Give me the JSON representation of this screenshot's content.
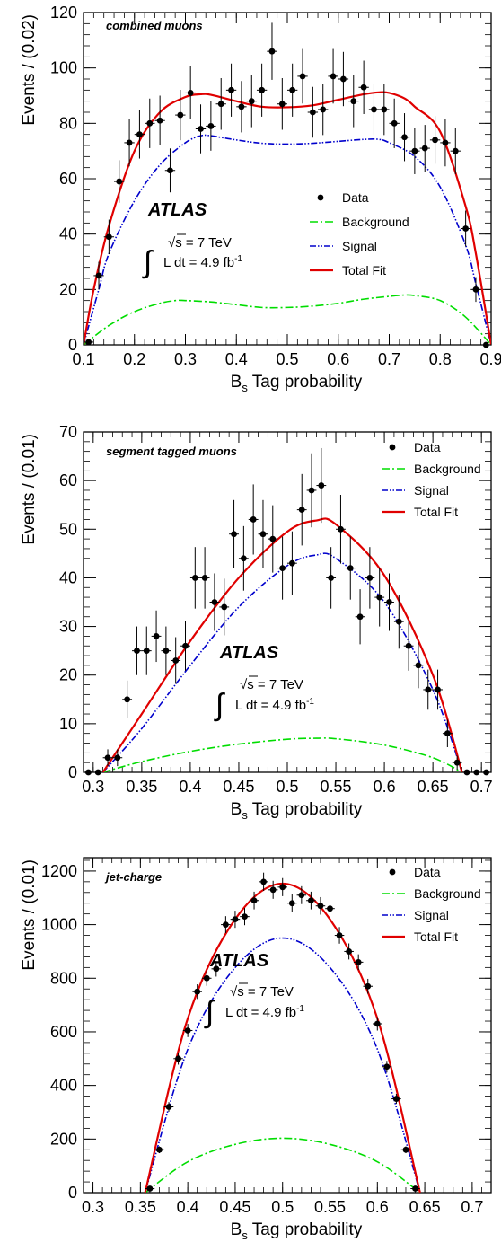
{
  "chart_data": [
    {
      "type": "scatter",
      "panel_label": "combined muons",
      "experiment": "ATLAS",
      "energy_label": "√s = 7 TeV",
      "lumi_label": "L dt = 4.9 fb",
      "lumi_exp": "-1",
      "xlabel": "B",
      "xlabel_sub": "s",
      "xlabel_rest": " Tag probability",
      "ylabel": "Events / (0.02)",
      "xlim": [
        0.1,
        0.9
      ],
      "ylim": [
        0,
        120
      ],
      "xticks": [
        "0.1",
        "0.2",
        "0.3",
        "0.4",
        "0.5",
        "0.6",
        "0.7",
        "0.8",
        "0.9"
      ],
      "yticks": [
        "0",
        "20",
        "40",
        "60",
        "80",
        "100",
        "120"
      ],
      "legend_position": "middle-right",
      "legend": [
        {
          "label": "Data",
          "kind": "marker",
          "color": "#000000"
        },
        {
          "label": "Background",
          "kind": "dashdot",
          "color": "#00dd00"
        },
        {
          "label": "Signal",
          "kind": "dashdotdot",
          "color": "#0000cc"
        },
        {
          "label": "Total Fit",
          "kind": "solid",
          "color": "#e00000"
        }
      ],
      "data": {
        "x": [
          0.11,
          0.13,
          0.15,
          0.17,
          0.19,
          0.21,
          0.23,
          0.25,
          0.27,
          0.29,
          0.31,
          0.33,
          0.35,
          0.37,
          0.39,
          0.41,
          0.43,
          0.45,
          0.47,
          0.49,
          0.51,
          0.53,
          0.55,
          0.57,
          0.59,
          0.61,
          0.63,
          0.65,
          0.67,
          0.69,
          0.71,
          0.73,
          0.75,
          0.77,
          0.79,
          0.81,
          0.83,
          0.85,
          0.87,
          0.89
        ],
        "y": [
          1,
          25,
          39,
          59,
          73,
          76,
          80,
          81,
          63,
          83,
          91,
          78,
          79,
          87,
          92,
          86,
          88,
          92,
          106,
          87,
          92,
          97,
          84,
          85,
          97,
          96,
          88,
          93,
          85,
          85,
          80,
          75,
          70,
          71,
          74,
          73,
          70,
          42,
          20,
          0
        ]
      },
      "series": [
        {
          "name": "Background",
          "x": [
            0.1,
            0.15,
            0.2,
            0.25,
            0.28,
            0.3,
            0.35,
            0.4,
            0.45,
            0.5,
            0.55,
            0.6,
            0.65,
            0.7,
            0.73,
            0.75,
            0.8,
            0.85,
            0.9
          ],
          "y": [
            0,
            7,
            12,
            15,
            16,
            16,
            15.5,
            14.5,
            13.5,
            13.5,
            14,
            15,
            16.5,
            17.5,
            18,
            17.8,
            16,
            10,
            0
          ]
        },
        {
          "name": "Signal",
          "x": [
            0.1,
            0.13,
            0.15,
            0.2,
            0.25,
            0.3,
            0.33,
            0.35,
            0.4,
            0.45,
            0.5,
            0.55,
            0.6,
            0.65,
            0.68,
            0.7,
            0.75,
            0.8,
            0.85,
            0.87,
            0.9
          ],
          "y": [
            0,
            20,
            33,
            52,
            65,
            73,
            75.5,
            75.5,
            74,
            72.8,
            72.5,
            72.8,
            73.5,
            74.2,
            74.2,
            73,
            68,
            57,
            36,
            22,
            0
          ]
        },
        {
          "name": "Total Fit",
          "x": [
            0.1,
            0.12,
            0.15,
            0.2,
            0.25,
            0.3,
            0.33,
            0.35,
            0.4,
            0.45,
            0.5,
            0.55,
            0.6,
            0.65,
            0.68,
            0.7,
            0.73,
            0.75,
            0.8,
            0.85,
            0.87,
            0.9
          ],
          "y": [
            0,
            20,
            43,
            70,
            84,
            89.5,
            90.5,
            90.3,
            88,
            86,
            85.8,
            86.5,
            88.5,
            90.5,
            91.2,
            91,
            89,
            86,
            77,
            50,
            33,
            0
          ]
        }
      ]
    },
    {
      "type": "scatter",
      "panel_label": "segment tagged muons",
      "experiment": "ATLAS",
      "energy_label": "√s = 7 TeV",
      "lumi_label": "L dt = 4.9 fb",
      "lumi_exp": "-1",
      "xlabel": "B",
      "xlabel_sub": "s",
      "xlabel_rest": " Tag probability",
      "ylabel": "Events / (0.01)",
      "xlim": [
        0.29,
        0.71
      ],
      "ylim": [
        0,
        70
      ],
      "xticks": [
        "0.3",
        "0.35",
        "0.4",
        "0.45",
        "0.5",
        "0.55",
        "0.6",
        "0.65",
        "0.7"
      ],
      "yticks": [
        "0",
        "10",
        "20",
        "30",
        "40",
        "50",
        "60",
        "70"
      ],
      "legend_position": "top-right",
      "legend": [
        {
          "label": "Data",
          "kind": "marker",
          "color": "#000000"
        },
        {
          "label": "Background",
          "kind": "dashdot",
          "color": "#00dd00"
        },
        {
          "label": "Signal",
          "kind": "dashdotdot",
          "color": "#0000cc"
        },
        {
          "label": "Total Fit",
          "kind": "solid",
          "color": "#e00000"
        }
      ],
      "data": {
        "x": [
          0.295,
          0.305,
          0.315,
          0.325,
          0.335,
          0.345,
          0.355,
          0.365,
          0.375,
          0.385,
          0.395,
          0.405,
          0.415,
          0.425,
          0.435,
          0.445,
          0.455,
          0.465,
          0.475,
          0.485,
          0.495,
          0.505,
          0.515,
          0.525,
          0.535,
          0.545,
          0.555,
          0.565,
          0.575,
          0.585,
          0.595,
          0.605,
          0.615,
          0.625,
          0.635,
          0.645,
          0.655,
          0.665,
          0.675,
          0.685,
          0.695,
          0.705
        ],
        "y": [
          0,
          0,
          3,
          3,
          15,
          25,
          25,
          28,
          25,
          23,
          26,
          40,
          40,
          35,
          34,
          49,
          44,
          52,
          49,
          48,
          42,
          43,
          54,
          58,
          59,
          40,
          50,
          42,
          32,
          40,
          36,
          35,
          31,
          26,
          22,
          17,
          17,
          8,
          2,
          0,
          0,
          0
        ]
      },
      "series": [
        {
          "name": "Background",
          "x": [
            0.31,
            0.35,
            0.4,
            0.45,
            0.5,
            0.53,
            0.55,
            0.6,
            0.65,
            0.68
          ],
          "y": [
            0,
            2.2,
            4.3,
            5.8,
            6.8,
            7,
            6.9,
            5.6,
            3,
            0
          ]
        },
        {
          "name": "Signal",
          "x": [
            0.31,
            0.35,
            0.4,
            0.45,
            0.5,
            0.53,
            0.55,
            0.6,
            0.65,
            0.68
          ],
          "y": [
            0,
            9,
            22,
            34,
            42.5,
            44.7,
            44,
            35,
            17,
            0
          ]
        },
        {
          "name": "Total Fit",
          "x": [
            0.31,
            0.35,
            0.4,
            0.45,
            0.5,
            0.53,
            0.55,
            0.6,
            0.65,
            0.68
          ],
          "y": [
            0,
            12,
            27,
            40,
            49.5,
            51.8,
            51,
            40.5,
            20,
            0
          ]
        }
      ]
    },
    {
      "type": "scatter",
      "panel_label": "jet-charge",
      "experiment": "ATLAS",
      "energy_label": "√s = 7 TeV",
      "lumi_label": "L dt = 4.9 fb",
      "lumi_exp": "-1",
      "xlabel": "B",
      "xlabel_sub": "s",
      "xlabel_rest": " Tag probability",
      "ylabel": "Events / (0.01)",
      "xlim": [
        0.29,
        0.72
      ],
      "ylim": [
        0,
        1250
      ],
      "xticks": [
        "0.3",
        "0.35",
        "0.4",
        "0.45",
        "0.5",
        "0.55",
        "0.6",
        "0.65",
        "0.7"
      ],
      "yticks": [
        "0",
        "200",
        "400",
        "600",
        "800",
        "1000",
        "1200"
      ],
      "legend_position": "top-right",
      "legend": [
        {
          "label": "Data",
          "kind": "marker",
          "color": "#000000"
        },
        {
          "label": "Background",
          "kind": "dashdot",
          "color": "#00dd00"
        },
        {
          "label": "Signal",
          "kind": "dashdotdot",
          "color": "#0000cc"
        },
        {
          "label": "Total Fit",
          "kind": "solid",
          "color": "#e00000"
        }
      ],
      "data": {
        "x": [
          0.36,
          0.37,
          0.38,
          0.39,
          0.4,
          0.41,
          0.42,
          0.43,
          0.44,
          0.45,
          0.46,
          0.47,
          0.48,
          0.49,
          0.5,
          0.51,
          0.52,
          0.53,
          0.54,
          0.55,
          0.56,
          0.57,
          0.58,
          0.59,
          0.6,
          0.61,
          0.62,
          0.63,
          0.64
        ],
        "y": [
          15,
          160,
          320,
          500,
          605,
          750,
          800,
          835,
          1000,
          1020,
          1030,
          1090,
          1160,
          1130,
          1140,
          1080,
          1110,
          1090,
          1070,
          1060,
          960,
          900,
          860,
          770,
          630,
          470,
          350,
          160,
          15
        ]
      },
      "series": [
        {
          "name": "Background",
          "x": [
            0.355,
            0.4,
            0.45,
            0.5,
            0.55,
            0.6,
            0.645
          ],
          "y": [
            0,
            115,
            180,
            203,
            180,
            115,
            0
          ]
        },
        {
          "name": "Signal",
          "x": [
            0.355,
            0.4,
            0.45,
            0.5,
            0.55,
            0.6,
            0.645
          ],
          "y": [
            0,
            535,
            840,
            950,
            840,
            535,
            0
          ]
        },
        {
          "name": "Total Fit",
          "x": [
            0.355,
            0.4,
            0.45,
            0.5,
            0.55,
            0.6,
            0.645
          ],
          "y": [
            0,
            650,
            1020,
            1153,
            1020,
            650,
            0
          ]
        }
      ]
    }
  ]
}
